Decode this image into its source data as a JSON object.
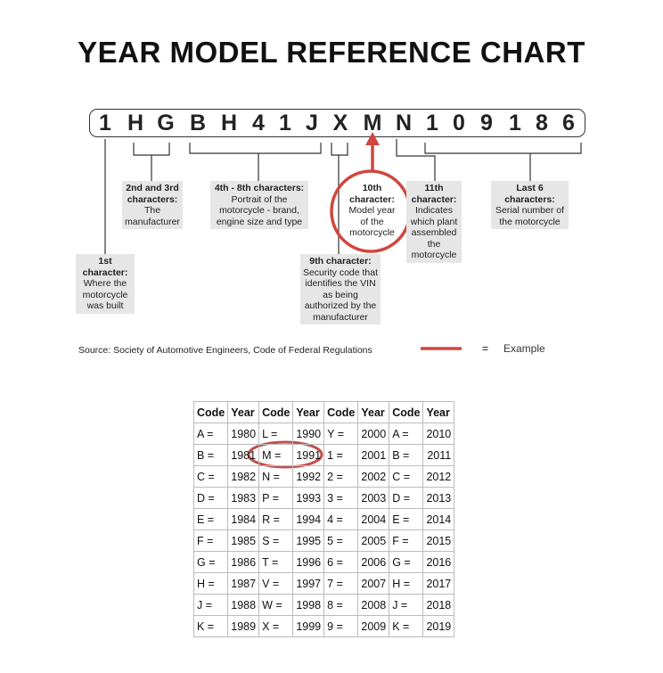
{
  "title": "YEAR MODEL REFERENCE CHART",
  "vin": [
    "1",
    "H",
    "G",
    "B",
    "H",
    "4",
    "1",
    "J",
    "X",
    "M",
    "N",
    "1",
    "0",
    "9",
    "1",
    "8",
    "6"
  ],
  "labels": {
    "first": {
      "head": "1st character:",
      "body": "Where the motorcycle was built"
    },
    "second": {
      "head": "2nd and 3rd characters:",
      "body": "The manufacturer"
    },
    "fourth": {
      "head": "4th - 8th characters:",
      "body": "Portrait of the motorcycle - brand, engine size and type"
    },
    "ninth": {
      "head": "9th character:",
      "body": "Security code that identifies the VIN as being authorized by the manufacturer"
    },
    "tenth": {
      "head": "10th character:",
      "body": "Model year of the motorcycle"
    },
    "eleventh": {
      "head": "11th character:",
      "body": "Indicates which plant assembled the motorcycle"
    },
    "last": {
      "head": "Last 6 characters:",
      "body": "Serial number of the motorcycle"
    }
  },
  "source": "Source:  Society of Automotive Engineers, Code of Federal Regulations",
  "legend": {
    "equals": "=",
    "example": "Example",
    "color": "#d0463f"
  },
  "table": {
    "headers": [
      "Code",
      "Year",
      "Code",
      "Year",
      "Code",
      "Year",
      "Code",
      "Year"
    ],
    "rows": [
      [
        "A =",
        "1980",
        "L =",
        "1990",
        "Y =",
        "2000",
        "A =",
        "2010"
      ],
      [
        "B =",
        "1981",
        "M =",
        "1991",
        "1 =",
        "2001",
        "B =",
        "2011"
      ],
      [
        "C =",
        "1982",
        "N =",
        "1992",
        "2 =",
        "2002",
        "C =",
        "2012"
      ],
      [
        "D =",
        "1983",
        "P =",
        "1993",
        "3 =",
        "2003",
        "D =",
        "2013"
      ],
      [
        "E =",
        "1984",
        "R =",
        "1994",
        "4 =",
        "2004",
        "E =",
        "2014"
      ],
      [
        "F =",
        "1985",
        "S =",
        "1995",
        "5 =",
        "2005",
        "F =",
        "2015"
      ],
      [
        "G =",
        "1986",
        "T =",
        "1996",
        "6 =",
        "2006",
        "G =",
        "2016"
      ],
      [
        "H =",
        "1987",
        "V =",
        "1997",
        "7 =",
        "2007",
        "H =",
        "2017"
      ],
      [
        "J =",
        "1988",
        "W =",
        "1998",
        "8 =",
        "2008",
        "J =",
        "2018"
      ],
      [
        "K =",
        "1989",
        "X =",
        "1999",
        "9 =",
        "2009",
        "K =",
        "2019"
      ]
    ]
  }
}
